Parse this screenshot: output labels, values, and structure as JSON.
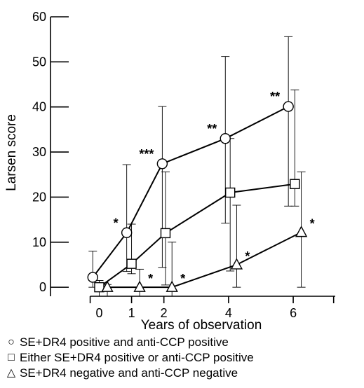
{
  "chart_data": {
    "type": "line",
    "xlabel": "Years of observation",
    "ylabel": "Larsen score",
    "xticks": [
      0,
      1,
      2,
      4,
      6
    ],
    "yticks": [
      0,
      10,
      20,
      30,
      40,
      50,
      60
    ],
    "xlim": [
      -0.9,
      7.3
    ],
    "ylim": [
      -2,
      60
    ],
    "grid": false,
    "legend_position": "bottom",
    "series": [
      {
        "name": "SE+DR4 positive and anti-CCP positive",
        "marker": "circle",
        "points": [
          {
            "x": -0.2,
            "y": 2.2,
            "upper": 8,
            "lower": 0,
            "sig": ""
          },
          {
            "x": 0.85,
            "y": 12.1,
            "upper": 27.2,
            "lower": 3.5,
            "sig": "*"
          },
          {
            "x": 1.95,
            "y": 27.4,
            "upper": 40.1,
            "lower": 4.4,
            "sig": "***"
          },
          {
            "x": 3.9,
            "y": 33.0,
            "upper": 51.2,
            "lower": 14.2,
            "sig": "**"
          },
          {
            "x": 5.85,
            "y": 40.1,
            "upper": 55.6,
            "lower": 18.0,
            "sig": "**"
          }
        ]
      },
      {
        "name": "Either SE+DR4 positive or anti-CCP positive",
        "marker": "square",
        "points": [
          {
            "x": 0.0,
            "y": 0.0,
            "upper": 1.5,
            "lower": -2,
            "sig": ""
          },
          {
            "x": 1.0,
            "y": 5.2,
            "upper": 14.0,
            "lower": 3.0,
            "sig": ""
          },
          {
            "x": 2.05,
            "y": 12.0,
            "upper": 25.6,
            "lower": 0.5,
            "sig": ""
          },
          {
            "x": 4.05,
            "y": 21.0,
            "upper": 33.0,
            "lower": 3.6,
            "sig": ""
          },
          {
            "x": 6.05,
            "y": 22.9,
            "upper": 43.8,
            "lower": 18.0,
            "sig": ""
          }
        ]
      },
      {
        "name": "SE+DR4 negative and anti-CCP negative",
        "marker": "triangle",
        "points": [
          {
            "x": 0.25,
            "y": 0.0,
            "upper": 0.6,
            "lower": -2,
            "sig": ""
          },
          {
            "x": 1.25,
            "y": 0.0,
            "upper": 4.0,
            "lower": -2,
            "sig": "*"
          },
          {
            "x": 2.25,
            "y": 0.0,
            "upper": 10.0,
            "lower": -2,
            "sig": "*"
          },
          {
            "x": 4.25,
            "y": 5.0,
            "upper": 18.2,
            "lower": 0.0,
            "sig": "*"
          },
          {
            "x": 6.25,
            "y": 12.2,
            "upper": 25.6,
            "lower": 0.0,
            "sig": "*"
          }
        ]
      }
    ]
  },
  "legend": [
    {
      "symbol": "○",
      "label": "SE+DR4 positive and anti-CCP positive"
    },
    {
      "symbol": "□",
      "label": "Either SE+DR4 positive or anti-CCP positive"
    },
    {
      "symbol": "△",
      "label": "SE+DR4 negative and anti-CCP negative"
    }
  ]
}
